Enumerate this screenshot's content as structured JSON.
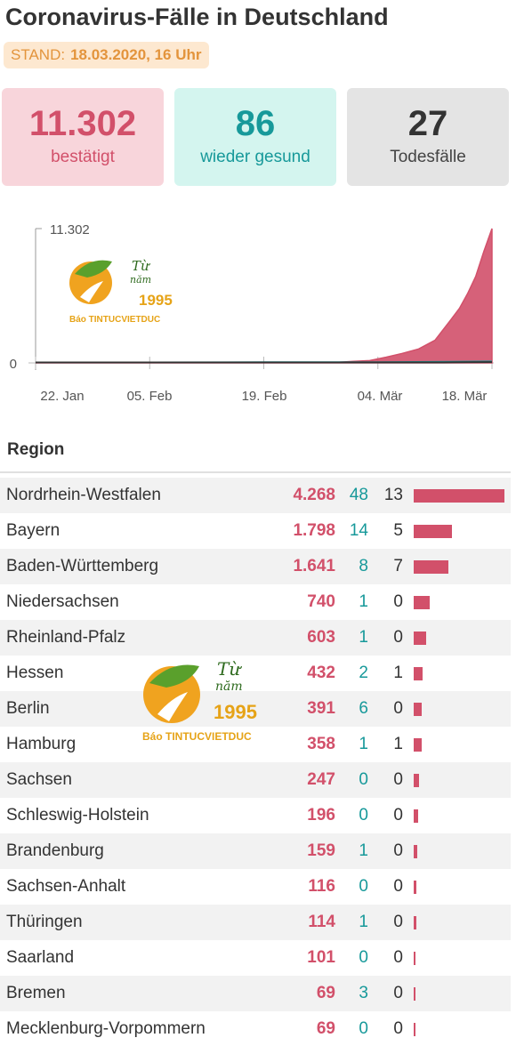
{
  "header": {
    "title": "Coronavirus-Fälle in Deutschland",
    "stand_label": "STAND:",
    "stand_value": "18.03.2020, 16 Uhr"
  },
  "summary": {
    "confirmed": {
      "value": "11.302",
      "label": "bestätigt",
      "color": "#d2506a"
    },
    "recovered": {
      "value": "86",
      "label": "wieder gesund",
      "color": "#17999a"
    },
    "deaths": {
      "value": "27",
      "label": "Todesfälle",
      "color": "#333333"
    }
  },
  "chart_data": {
    "type": "area",
    "x_ticks": [
      "22. Jan",
      "05. Feb",
      "19. Feb",
      "04. Mär",
      "18. Mär"
    ],
    "y_ticks": [
      "11.302",
      "0"
    ],
    "ylim": [
      0,
      11302
    ],
    "x_start": "2020-01-22",
    "series": [
      {
        "color": "#d2506a",
        "values": [
          [
            "2020-01-22",
            0
          ],
          [
            "2020-01-27",
            1
          ],
          [
            "2020-01-28",
            4
          ],
          [
            "2020-01-31",
            7
          ],
          [
            "2020-02-05",
            12
          ],
          [
            "2020-02-12",
            16
          ],
          [
            "2020-02-19",
            16
          ],
          [
            "2020-02-26",
            18
          ],
          [
            "2020-02-28",
            48
          ],
          [
            "2020-03-01",
            130
          ],
          [
            "2020-03-03",
            196
          ],
          [
            "2020-03-05",
            482
          ],
          [
            "2020-03-07",
            800
          ],
          [
            "2020-03-09",
            1176
          ],
          [
            "2020-03-11",
            1900
          ],
          [
            "2020-03-13",
            3675
          ],
          [
            "2020-03-14",
            4585
          ],
          [
            "2020-03-15",
            5813
          ],
          [
            "2020-03-16",
            7272
          ],
          [
            "2020-03-17",
            9360
          ],
          [
            "2020-03-18",
            11302
          ]
        ]
      },
      {
        "color": "#17999a",
        "values": [
          [
            "2020-01-22",
            0
          ],
          [
            "2020-02-05",
            0
          ],
          [
            "2020-02-19",
            14
          ],
          [
            "2020-03-04",
            16
          ],
          [
            "2020-03-18",
            86
          ]
        ]
      },
      {
        "color": "#333333",
        "values": [
          [
            "2020-01-22",
            0
          ],
          [
            "2020-03-08",
            0
          ],
          [
            "2020-03-12",
            3
          ],
          [
            "2020-03-15",
            13
          ],
          [
            "2020-03-18",
            27
          ]
        ]
      }
    ]
  },
  "table": {
    "header": "Region",
    "bar_color": "#d2506a",
    "rows": [
      {
        "name": "Nordrhein-Westfalen",
        "confirmed": "4.268",
        "recovered": "48",
        "deaths": "13",
        "cases": 4268
      },
      {
        "name": "Bayern",
        "confirmed": "1.798",
        "recovered": "14",
        "deaths": "5",
        "cases": 1798
      },
      {
        "name": "Baden-Württemberg",
        "confirmed": "1.641",
        "recovered": "8",
        "deaths": "7",
        "cases": 1641
      },
      {
        "name": "Niedersachsen",
        "confirmed": "740",
        "recovered": "1",
        "deaths": "0",
        "cases": 740
      },
      {
        "name": "Rheinland-Pfalz",
        "confirmed": "603",
        "recovered": "1",
        "deaths": "0",
        "cases": 603
      },
      {
        "name": "Hessen",
        "confirmed": "432",
        "recovered": "2",
        "deaths": "1",
        "cases": 432
      },
      {
        "name": "Berlin",
        "confirmed": "391",
        "recovered": "6",
        "deaths": "0",
        "cases": 391
      },
      {
        "name": "Hamburg",
        "confirmed": "358",
        "recovered": "1",
        "deaths": "1",
        "cases": 358
      },
      {
        "name": "Sachsen",
        "confirmed": "247",
        "recovered": "0",
        "deaths": "0",
        "cases": 247
      },
      {
        "name": "Schleswig-Holstein",
        "confirmed": "196",
        "recovered": "0",
        "deaths": "0",
        "cases": 196
      },
      {
        "name": "Brandenburg",
        "confirmed": "159",
        "recovered": "1",
        "deaths": "0",
        "cases": 159
      },
      {
        "name": "Sachsen-Anhalt",
        "confirmed": "116",
        "recovered": "0",
        "deaths": "0",
        "cases": 116
      },
      {
        "name": "Thüringen",
        "confirmed": "114",
        "recovered": "1",
        "deaths": "0",
        "cases": 114
      },
      {
        "name": "Saarland",
        "confirmed": "101",
        "recovered": "0",
        "deaths": "0",
        "cases": 101
      },
      {
        "name": "Bremen",
        "confirmed": "69",
        "recovered": "3",
        "deaths": "0",
        "cases": 69
      },
      {
        "name": "Mecklenburg-Vorpommern",
        "confirmed": "69",
        "recovered": "0",
        "deaths": "0",
        "cases": 69
      }
    ]
  },
  "watermark": {
    "line1": "Từ",
    "line2": "năm",
    "year": "1995",
    "brand": "Báo TINTUCVIETDUC"
  }
}
